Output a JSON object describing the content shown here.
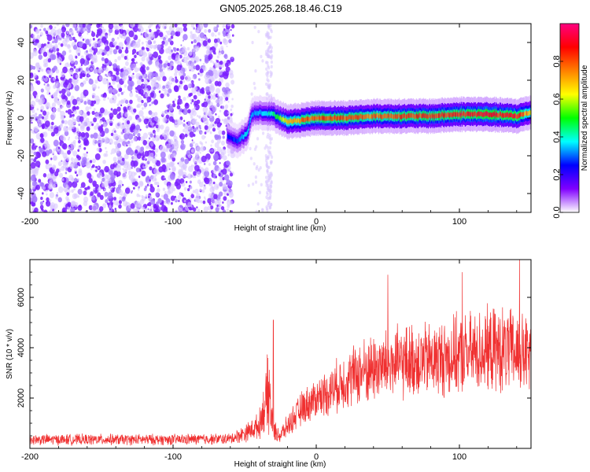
{
  "title": "GN05.2025.268.18.46.C19",
  "chart_data": [
    {
      "type": "heatmap",
      "xlabel": "Height of straight line (km)",
      "ylabel": "Frequency (Hz)",
      "xlim": [
        -200,
        150
      ],
      "ylim": [
        -50,
        50
      ],
      "x_ticks": [
        -200,
        -100,
        0,
        100
      ],
      "y_ticks": [
        -40,
        -20,
        0,
        20,
        40
      ],
      "colorbar": {
        "label": "Normalized spectral amplitude",
        "range": [
          0,
          1
        ],
        "ticks": [
          0.0,
          0.2,
          0.4,
          0.6,
          0.8
        ],
        "tick_labels": [
          "0.0",
          "0.2",
          "0.4",
          "0.6",
          "0.8"
        ],
        "colors": [
          "#ffffff",
          "#8000ff",
          "#0000ff",
          "#00ffff",
          "#00ff00",
          "#ffff00",
          "#ff8000",
          "#ff0000",
          "#ff0080"
        ]
      },
      "signal_ridge": {
        "x": [
          -62,
          -55,
          -48,
          -45,
          -40,
          -30,
          -20,
          -10,
          0,
          20,
          40,
          60,
          80,
          100,
          120,
          140,
          150
        ],
        "freq": [
          -10,
          -12,
          -8,
          2,
          3,
          2,
          -2,
          -1,
          0,
          0,
          1,
          1,
          1,
          2,
          2,
          1,
          3
        ],
        "peak_amplitude": [
          0.25,
          0.3,
          0.4,
          0.35,
          0.35,
          0.45,
          0.7,
          0.8,
          0.85,
          0.85,
          0.8,
          0.85,
          0.85,
          0.9,
          0.9,
          0.9,
          0.7
        ]
      },
      "noise_region": {
        "x_range": [
          -200,
          -58
        ],
        "typical_amplitude": 0.15,
        "color": "#7a1fff"
      },
      "residual_noise_column": {
        "x": -33,
        "amplitude": 0.05
      }
    },
    {
      "type": "line",
      "xlabel": "Height of straight line (km)",
      "ylabel": "SNR (10 * v/v)",
      "xlim": [
        -200,
        150
      ],
      "ylim": [
        0,
        7500
      ],
      "x_ticks": [
        -200,
        -100,
        0,
        100
      ],
      "y_ticks": [
        2000,
        4000,
        6000
      ],
      "series": [
        {
          "name": "SNR",
          "color": "#f03030",
          "envelope_x": [
            -200,
            -100,
            -60,
            -50,
            -40,
            -36,
            -33,
            -30,
            -25,
            -20,
            -10,
            0,
            10,
            20,
            30,
            40,
            50,
            60,
            70,
            80,
            90,
            100,
            110,
            120,
            130,
            140,
            150
          ],
          "envelope_mean": [
            350,
            350,
            380,
            600,
            900,
            1700,
            2200,
            700,
            500,
            900,
            1600,
            2000,
            2300,
            2700,
            3000,
            3200,
            3300,
            3400,
            3500,
            3500,
            3600,
            3700,
            3800,
            3900,
            3900,
            3800,
            3600
          ],
          "envelope_spread": [
            250,
            250,
            250,
            400,
            600,
            1200,
            2200,
            500,
            400,
            500,
            800,
            900,
            1100,
            1300,
            1500,
            1600,
            1600,
            1700,
            1700,
            1700,
            1800,
            1800,
            1900,
            1900,
            2000,
            1900,
            1800
          ],
          "peaks": [
            {
              "x": -30,
              "y": 5100
            },
            {
              "x": 50,
              "y": 6900
            },
            {
              "x": 102,
              "y": 7000
            },
            {
              "x": 142,
              "y": 7500
            }
          ]
        }
      ]
    }
  ]
}
